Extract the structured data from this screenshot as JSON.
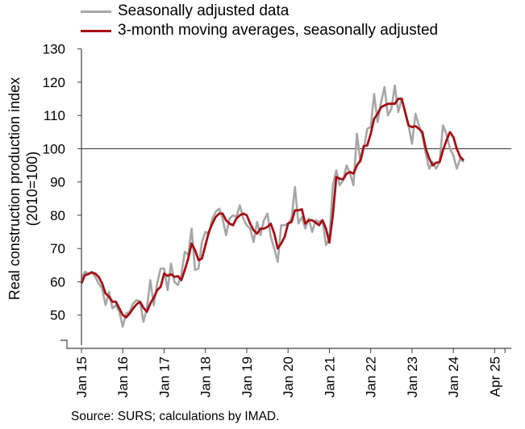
{
  "chart_data": {
    "type": "line",
    "legend_position": "top-left",
    "ylabel": "Real construction production index (2010=100)",
    "ylabel_line1": "Real construction production index",
    "ylabel_line2": "(2010=100)",
    "ylim": [
      40,
      130
    ],
    "yticks": [
      50,
      60,
      70,
      80,
      90,
      100,
      110,
      120,
      130
    ],
    "reference_line": 100,
    "grid": false,
    "x_start": "2015-01",
    "x_end": "2025-04",
    "xtick_labels": [
      "Jan 15",
      "Jan 16",
      "Jan 17",
      "Jan 18",
      "Jan 19",
      "Jan 20",
      "Jan 21",
      "Jan 22",
      "Jan 23",
      "Jan 24",
      "Apr 25"
    ],
    "series": [
      {
        "name": "Seasonally adjusted data",
        "color": "#a6a6a6",
        "values": [
          61.0,
          63.0,
          62.5,
          63.0,
          61.5,
          59.5,
          58.0,
          53.0,
          57.0,
          52.0,
          53.0,
          51.0,
          46.5,
          50.5,
          51.0,
          53.5,
          54.5,
          54.0,
          48.0,
          52.0,
          60.5,
          53.0,
          59.5,
          64.0,
          64.0,
          57.5,
          65.5,
          60.0,
          59.0,
          62.0,
          69.0,
          68.0,
          76.0,
          63.5,
          64.0,
          72.0,
          75.0,
          74.5,
          79.0,
          81.0,
          82.0,
          79.0,
          74.0,
          79.0,
          80.0,
          79.5,
          83.0,
          79.0,
          77.0,
          76.0,
          72.0,
          78.0,
          74.0,
          78.5,
          80.5,
          73.5,
          70.0,
          66.0,
          77.0,
          77.0,
          77.5,
          79.0,
          88.5,
          77.5,
          79.5,
          76.0,
          79.0,
          75.0,
          78.5,
          78.0,
          78.5,
          71.0,
          73.0,
          89.0,
          93.5,
          89.0,
          90.5,
          95.0,
          92.5,
          89.0,
          104.5,
          96.0,
          100.0,
          106.0,
          106.5,
          116.5,
          108.0,
          114.0,
          118.5,
          110.0,
          112.0,
          119.0,
          111.0,
          115.0,
          111.0,
          107.0,
          101.5,
          110.5,
          107.0,
          104.0,
          98.5,
          94.0,
          96.0,
          94.0,
          96.0,
          107.0,
          104.5,
          100.0,
          98.0,
          94.0,
          97.0,
          96.0
        ]
      },
      {
        "name": "3-month moving averages, seasonally adjusted",
        "color": "#a50f15",
        "values": [
          59.5,
          62.0,
          62.3,
          62.8,
          62.5,
          61.5,
          59.5,
          56.5,
          55.5,
          54.0,
          54.0,
          52.0,
          50.0,
          49.3,
          50.5,
          52.0,
          53.2,
          54.0,
          52.2,
          51.0,
          53.5,
          55.3,
          57.5,
          58.5,
          62.5,
          61.8,
          62.3,
          61.5,
          61.7,
          60.5,
          63.5,
          67.0,
          71.5,
          69.5,
          66.5,
          67.0,
          71.0,
          75.0,
          77.5,
          79.5,
          80.5,
          80.5,
          78.5,
          77.5,
          77.0,
          79.0,
          80.0,
          80.5,
          80.0,
          77.5,
          75.5,
          74.5,
          76.0,
          76.0,
          76.5,
          77.5,
          74.5,
          70.0,
          71.5,
          73.5,
          77.5,
          78.0,
          81.5,
          81.5,
          81.8,
          77.5,
          78.5,
          78.5,
          77.8,
          77.0,
          78.5,
          76.0,
          71.8,
          80.0,
          91.5,
          91.0,
          90.8,
          92.5,
          93.0,
          92.5,
          95.0,
          96.5,
          100.8,
          101.0,
          104.5,
          109.0,
          110.5,
          112.5,
          113.0,
          113.5,
          113.5,
          113.5,
          115.0,
          115.0,
          111.0,
          107.0,
          106.5,
          106.8,
          106.0,
          105.0,
          100.0,
          97.0,
          95.0,
          95.8,
          96.0,
          99.5,
          102.5,
          105.0,
          103.5,
          100.0,
          97.5,
          96.5
        ]
      }
    ]
  },
  "source_text": "Source: SURS; calculations by IMAD."
}
